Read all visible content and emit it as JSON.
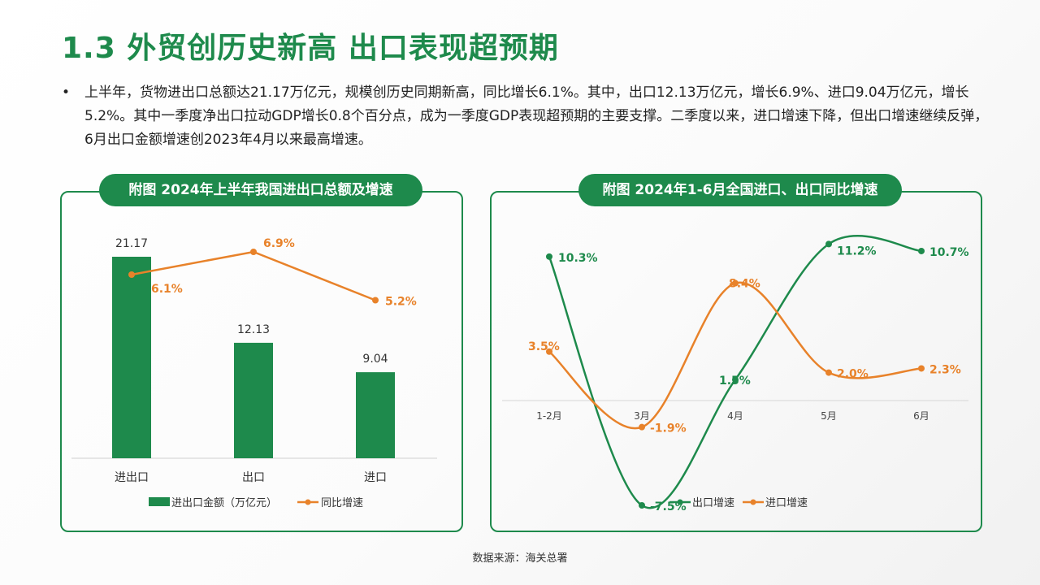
{
  "title": "1.3  外贸创历史新高 出口表现超预期",
  "bullet": {
    "marker": "•",
    "text": "上半年，货物进出口总额达21.17万亿元，规模创历史同期新高，同比增长6.1%。其中，出口12.13万亿元，增长6.9%、进口9.04万亿元，增长5.2%。其中一季度净出口拉动GDP增长0.8个百分点，成为一季度GDP表现超预期的主要支撑。二季度以来，进口增速下降，但出口增速继续反弹，6月出口金额增速创2023年4月以来最高增速。"
  },
  "source": "数据来源：海关总署",
  "colors": {
    "green": "#1e8a4c",
    "orange": "#e8822a"
  },
  "chart_data": [
    {
      "type": "bar",
      "title": "附图 2024年上半年我国进出口总额及增速",
      "categories": [
        "进出口",
        "出口",
        "进口"
      ],
      "series": [
        {
          "name": "进出口金额（万亿元）",
          "kind": "bar",
          "values": [
            21.17,
            12.13,
            9.04
          ],
          "labels": [
            "21.17",
            "12.13",
            "9.04"
          ]
        },
        {
          "name": "同比增速",
          "kind": "line",
          "values": [
            6.1,
            6.9,
            5.2
          ],
          "labels": [
            "6.1%",
            "6.9%",
            "5.2%"
          ]
        }
      ],
      "legend": "bottom"
    },
    {
      "type": "line",
      "title": "附图 2024年1-6月全国进口、出口同比增速",
      "categories": [
        "1-2月",
        "3月",
        "4月",
        "5月",
        "6月"
      ],
      "series": [
        {
          "name": "出口增速",
          "values": [
            10.3,
            -7.5,
            1.5,
            11.2,
            10.7
          ],
          "labels": [
            "10.3%",
            "-7.5%",
            "1.5%",
            "11.2%",
            "10.7%"
          ]
        },
        {
          "name": "进口增速",
          "values": [
            3.5,
            -1.9,
            8.4,
            2.0,
            2.3
          ],
          "labels": [
            "3.5%",
            "-1.9%",
            "8.4%",
            "2.0%",
            "2.3%"
          ]
        }
      ],
      "legend": "bottom",
      "smooth": true
    }
  ]
}
